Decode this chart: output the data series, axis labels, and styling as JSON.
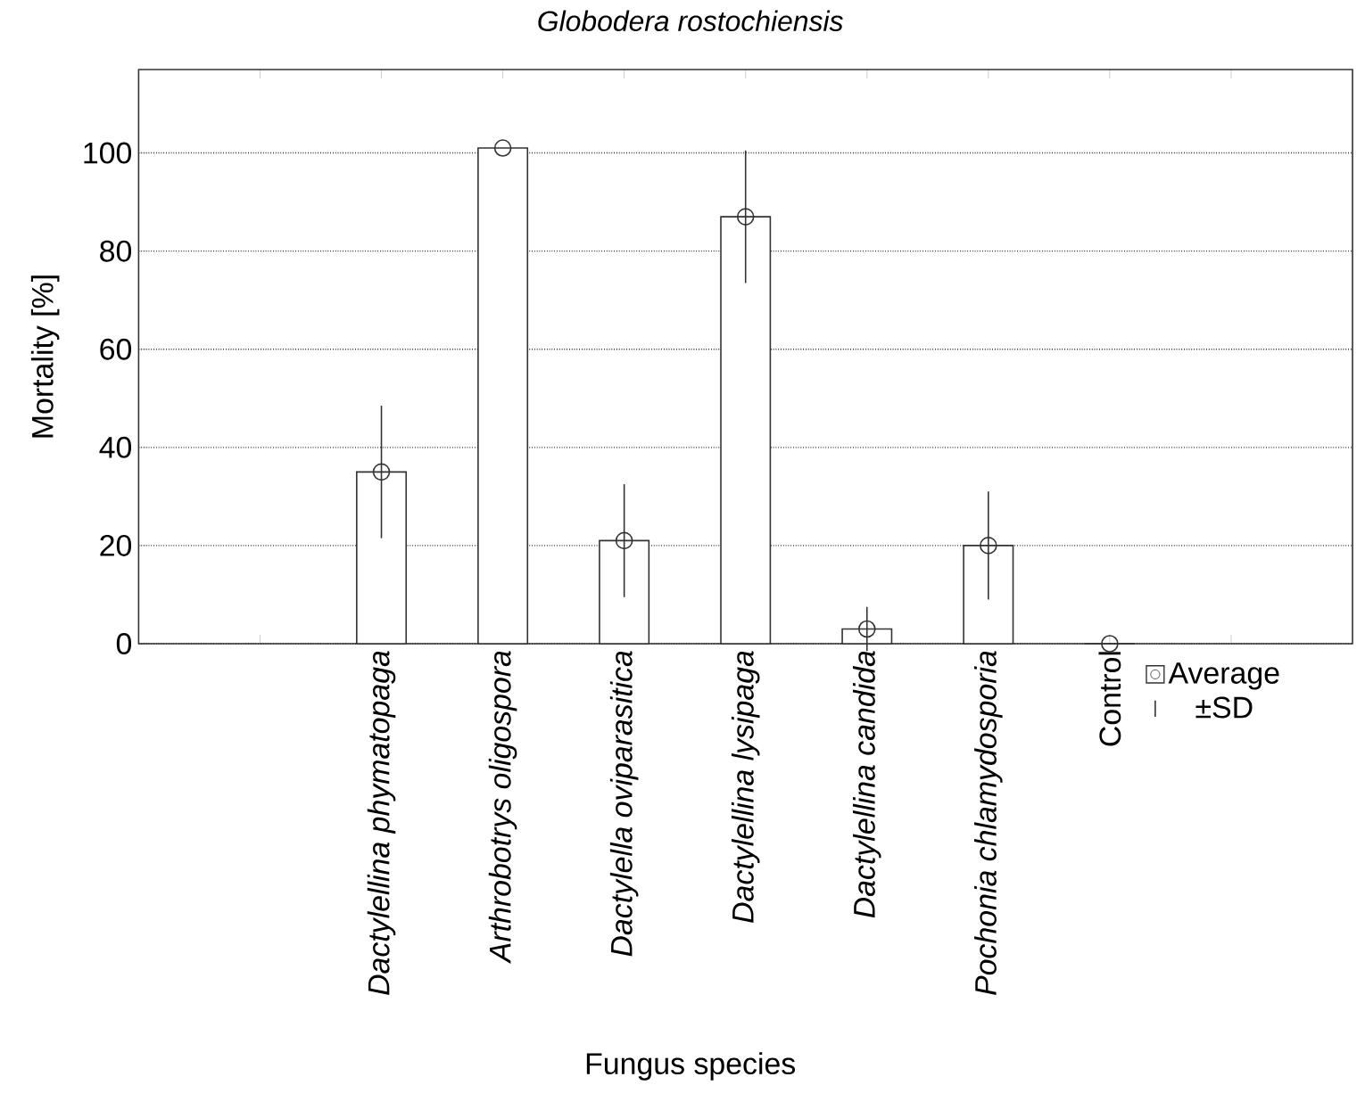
{
  "chart_data": {
    "type": "bar",
    "title": "Globodera rostochiensis",
    "xlabel": "Fungus species",
    "ylabel": "Mortality [%]",
    "categories": [
      "*Dactylellina phymatopaga*",
      "*Arthrobotrys oligospora*",
      "*Dactylella oviparasitica*",
      "*Dactylellina lysipaga*",
      "*Dactylellina candida*",
      "*Pochonia chlamydosporia*",
      "Control"
    ],
    "series": [
      {
        "color": "#333333",
        "values": [
          35,
          101,
          21,
          87,
          3,
          20,
          0
        ]
      },
      {
        "type": "scatter",
        "name": "Average",
        "color": "#333333",
        "values": [
          35,
          101,
          21,
          87,
          3,
          20,
          0
        ],
        "errors": [
          13.5,
          null,
          11.5,
          13.5,
          4.5,
          11,
          null
        ]
      }
    ],
    "ylim": [
      0,
      117
    ],
    "yticks": [
      0,
      20,
      40,
      60,
      80,
      100
    ],
    "grid": "y",
    "legend": "bottom right",
    "marker": "circle",
    "annotations": [
      "±SD"
    ]
  }
}
